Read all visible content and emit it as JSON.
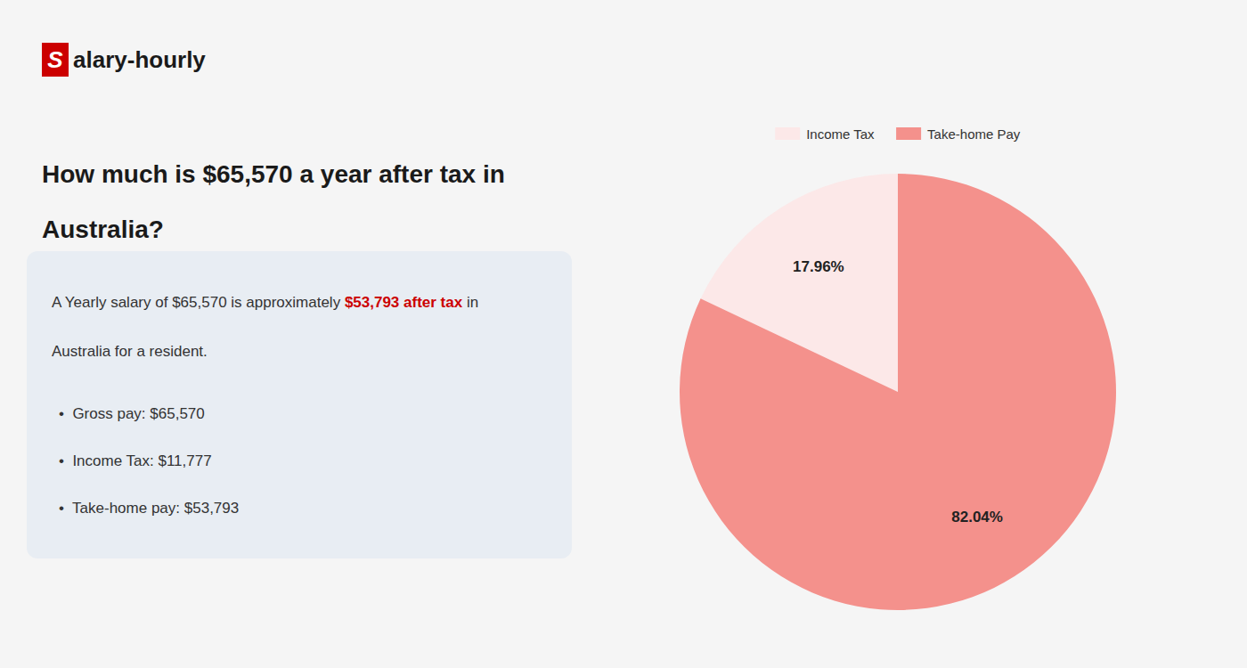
{
  "chart_data": {
    "type": "pie",
    "annotations": [
      {
        "text": "S",
        "color": "#cc0000"
      },
      {
        "text": "alary-hourly"
      },
      {
        "text": "How much is $65,570 a year after tax in"
      },
      {
        "text": "Australia?"
      },
      {
        "text": "A Yearly salary of $65,570 is approximately "
      },
      {
        "text": "$53,793 after tax",
        "color": "#cc0000"
      },
      {
        "text": " in"
      },
      {
        "text": "Australia for a resident."
      },
      {
        "text": "•  Gross pay: $65,570"
      },
      {
        "text": "•  Income Tax: $11,777"
      },
      {
        "text": "•  Take-home pay: $53,793"
      }
    ],
    "categories": [
      "Income Tax",
      "Take-home Pay"
    ],
    "values": [
      17.96,
      82.04
    ],
    "value_labels": [
      "17.96%",
      "82.04%"
    ],
    "data_labels": true,
    "colors": [
      "#fce8e8",
      "#f4918c"
    ],
    "legend": "top"
  }
}
